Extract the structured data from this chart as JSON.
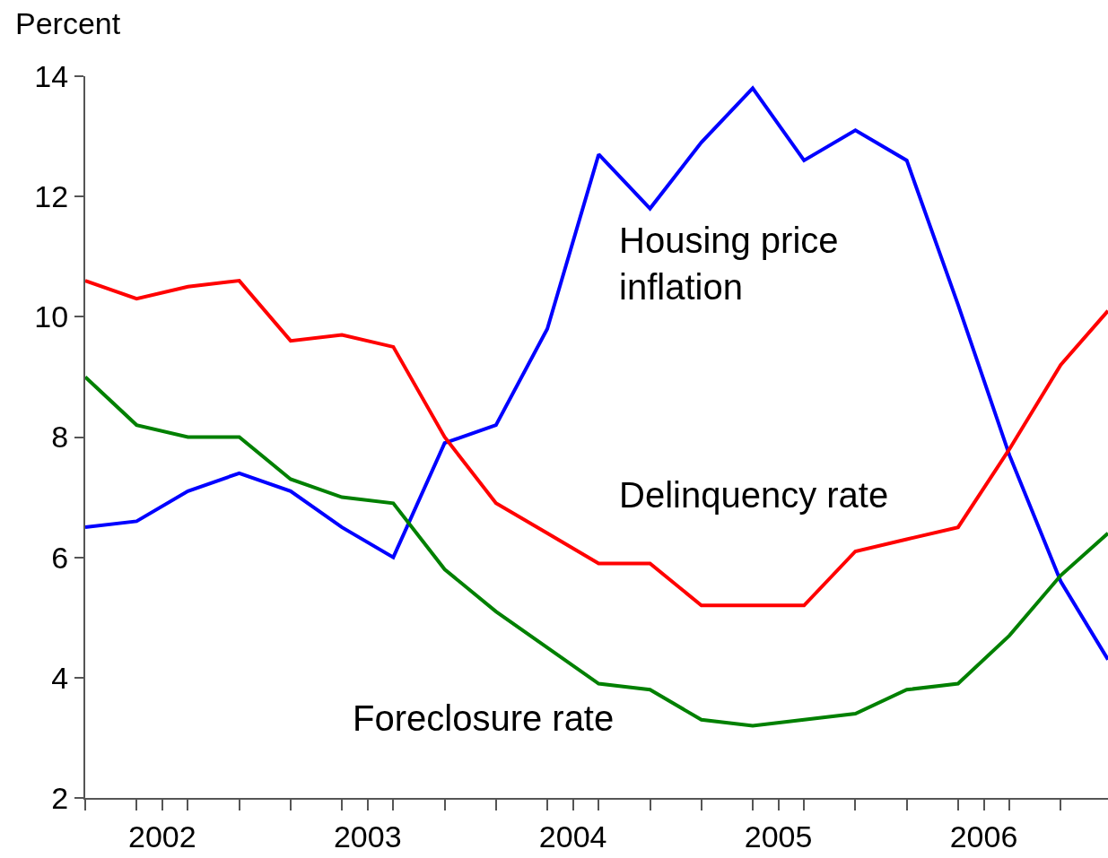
{
  "chart_data": {
    "type": "line",
    "ylabel": "Percent",
    "x": [
      2002,
      2002.25,
      2002.5,
      2002.75,
      2003,
      2003.25,
      2003.5,
      2003.75,
      2004,
      2004.25,
      2004.5,
      2004.75,
      2005,
      2005.25,
      2005.5,
      2005.75,
      2006,
      2006.25,
      2006.5,
      2006.75,
      2006.98
    ],
    "series": [
      {
        "name": "Housing price\ninflation",
        "color": "#0000ff",
        "values": [
          6.5,
          6.6,
          7.1,
          7.4,
          7.1,
          6.5,
          6.0,
          7.9,
          8.2,
          9.8,
          12.7,
          11.8,
          12.9,
          13.8,
          12.6,
          13.1,
          12.6,
          10.2,
          7.7,
          5.6,
          4.3
        ]
      },
      {
        "name": "Delinquency rate",
        "color": "#ff0000",
        "values": [
          10.6,
          10.3,
          10.5,
          10.6,
          9.6,
          9.7,
          9.5,
          8.0,
          6.9,
          6.4,
          5.9,
          5.9,
          5.2,
          5.2,
          5.2,
          6.1,
          6.3,
          6.5,
          7.8,
          9.2,
          10.1
        ]
      },
      {
        "name": "Foreclosure rate",
        "color": "#008000",
        "values": [
          9.0,
          8.2,
          8.0,
          8.0,
          7.3,
          7.0,
          6.9,
          5.8,
          5.1,
          4.5,
          3.9,
          3.8,
          3.3,
          3.2,
          3.3,
          3.4,
          3.8,
          3.9,
          4.7,
          5.7,
          6.4
        ]
      }
    ],
    "xlim": [
      2002,
      2006.98
    ],
    "xticks": [
      {
        "value": 2002,
        "label": null
      },
      {
        "value": 2002.25,
        "label": null
      },
      {
        "value": 2002.375,
        "label": "2002"
      },
      {
        "value": 2002.5,
        "label": null
      },
      {
        "value": 2002.75,
        "label": null
      },
      {
        "value": 2003,
        "label": null
      },
      {
        "value": 2003.25,
        "label": null
      },
      {
        "value": 2003.375,
        "label": "2003"
      },
      {
        "value": 2003.5,
        "label": null
      },
      {
        "value": 2003.75,
        "label": null
      },
      {
        "value": 2004,
        "label": null
      },
      {
        "value": 2004.25,
        "label": null
      },
      {
        "value": 2004.375,
        "label": "2004"
      },
      {
        "value": 2004.5,
        "label": null
      },
      {
        "value": 2004.75,
        "label": null
      },
      {
        "value": 2005,
        "label": null
      },
      {
        "value": 2005.25,
        "label": null
      },
      {
        "value": 2005.375,
        "label": "2005"
      },
      {
        "value": 2005.5,
        "label": null
      },
      {
        "value": 2005.75,
        "label": null
      },
      {
        "value": 2006,
        "label": null
      },
      {
        "value": 2006.25,
        "label": null
      },
      {
        "value": 2006.375,
        "label": "2006"
      },
      {
        "value": 2006.5,
        "label": null
      },
      {
        "value": 2006.75,
        "label": null
      }
    ],
    "ylim": [
      2,
      14
    ],
    "yticks": [
      2,
      4,
      6,
      8,
      10,
      12,
      14
    ],
    "grid": false,
    "legend": false,
    "marker": "none",
    "line_style": "solid"
  }
}
